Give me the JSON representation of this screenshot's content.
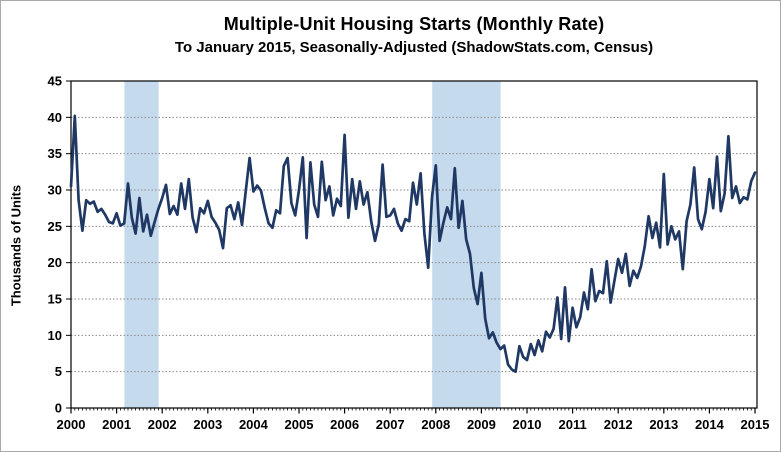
{
  "window": {
    "background": "#ffffff",
    "border_color": "#a9a9a9"
  },
  "chart_data": {
    "type": "line",
    "title": "Multiple-Unit Housing Starts (Monthly Rate)",
    "subtitle": "To January 2015, Seasonally-Adjusted (ShadowStats.com, Census)",
    "xlabel": "",
    "ylabel": "Thousands of Units",
    "ylim": [
      0,
      45
    ],
    "y_ticks": [
      0,
      5,
      10,
      15,
      20,
      25,
      30,
      35,
      40,
      45
    ],
    "x_ticks": [
      2000,
      2001,
      2002,
      2003,
      2004,
      2005,
      2006,
      2007,
      2008,
      2009,
      2010,
      2011,
      2012,
      2013,
      2014,
      2015
    ],
    "xlim": [
      2000,
      2015.05
    ],
    "grid": "horizontal dotted gray lines every 5 units",
    "legend": "none",
    "frequency": "monthly",
    "start_month": "2000-01",
    "end_month": "2015-01",
    "recession_bands": [
      [
        2001.17,
        2001.92
      ],
      [
        2007.92,
        2009.42
      ]
    ],
    "colors": {
      "line": "#1F3864",
      "recession_band": "#C5DAEC",
      "grid": "#8a8a8a",
      "axis": "#000000"
    },
    "series": [
      {
        "name": "Multiple-unit housing starts (thousands of units, monthly rate)",
        "values": [
          30.5,
          40.2,
          28.6,
          24.4,
          28.6,
          28.1,
          28.4,
          27.0,
          27.4,
          26.6,
          25.6,
          25.4,
          26.8,
          25.1,
          25.4,
          30.9,
          26.2,
          24.0,
          28.9,
          24.3,
          26.6,
          23.7,
          25.6,
          27.4,
          28.9,
          30.7,
          26.7,
          27.8,
          26.6,
          30.9,
          27.4,
          31.5,
          26.2,
          24.2,
          27.5,
          26.8,
          28.5,
          26.3,
          25.5,
          24.5,
          22.0,
          27.5,
          27.9,
          26.0,
          28.3,
          25.2,
          29.9,
          34.4,
          29.8,
          30.6,
          29.9,
          27.5,
          25.4,
          24.8,
          27.2,
          26.8,
          33.3,
          34.4,
          28.2,
          26.5,
          30.0,
          34.5,
          23.4,
          33.8,
          28.0,
          26.3,
          33.9,
          28.6,
          30.5,
          26.5,
          28.8,
          27.8,
          37.6,
          26.2,
          31.5,
          27.4,
          31.2,
          28.0,
          29.7,
          25.7,
          23.0,
          25.3,
          33.5,
          26.3,
          26.5,
          27.4,
          25.4,
          24.4,
          26.0,
          25.7,
          31.0,
          28.0,
          32.3,
          24.0,
          19.3,
          29.0,
          33.4,
          23.0,
          25.5,
          27.6,
          26.0,
          33.0,
          24.8,
          28.5,
          23.2,
          21.2,
          16.5,
          14.3,
          18.6,
          12.3,
          9.6,
          10.4,
          9.0,
          8.1,
          8.6,
          6.0,
          5.3,
          5.0,
          8.5,
          7.0,
          6.6,
          8.8,
          7.3,
          9.3,
          7.8,
          10.5,
          9.7,
          10.9,
          15.2,
          9.5,
          16.6,
          9.2,
          13.8,
          11.1,
          12.5,
          15.9,
          13.6,
          19.1,
          14.7,
          16.1,
          15.8,
          20.2,
          14.5,
          17.5,
          20.5,
          18.6,
          21.2,
          16.8,
          18.9,
          17.9,
          19.5,
          22.3,
          26.4,
          23.4,
          25.5,
          22.1,
          32.2,
          22.5,
          25.0,
          23.2,
          24.3,
          19.1,
          25.7,
          28.0,
          33.1,
          26.0,
          24.6,
          27.0,
          31.5,
          27.5,
          34.6,
          27.1,
          29.5,
          37.4,
          28.9,
          30.5,
          28.2,
          29.0,
          28.7,
          31.2,
          32.4
        ]
      }
    ]
  }
}
